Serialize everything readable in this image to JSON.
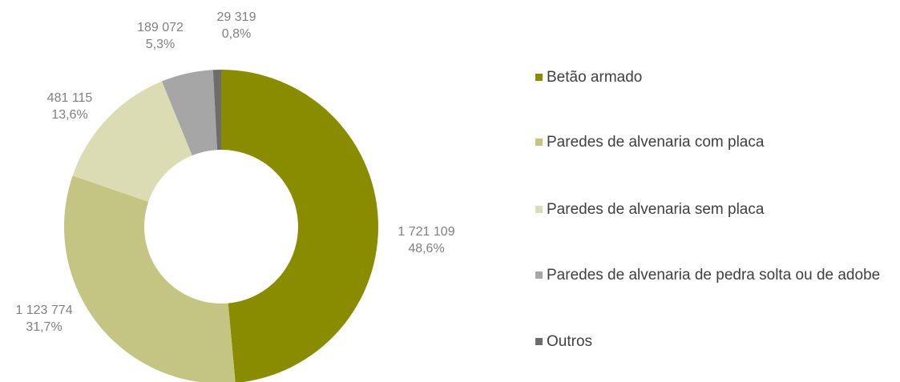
{
  "chart_data": {
    "type": "donut",
    "categories": [
      "Betão armado",
      "Paredes de alvenaria com placa",
      "Paredes de alvenaria sem placa",
      "Paredes de alvenaria de pedra solta ou de adobe",
      "Outros"
    ],
    "values": [
      1721109,
      1123774,
      481115,
      189072,
      29319
    ],
    "value_labels": [
      "1 721 109",
      "1 123 774",
      "481 115",
      "189 072",
      "29 319"
    ],
    "percent_labels": [
      "48,6%",
      "31,7%",
      "13,6%",
      "5,3%",
      "0,8%"
    ],
    "colors": [
      "#8a8c00",
      "#c4c483",
      "#dcdcb4",
      "#a6a6a6",
      "#6d6d6d"
    ],
    "legend": "right"
  }
}
